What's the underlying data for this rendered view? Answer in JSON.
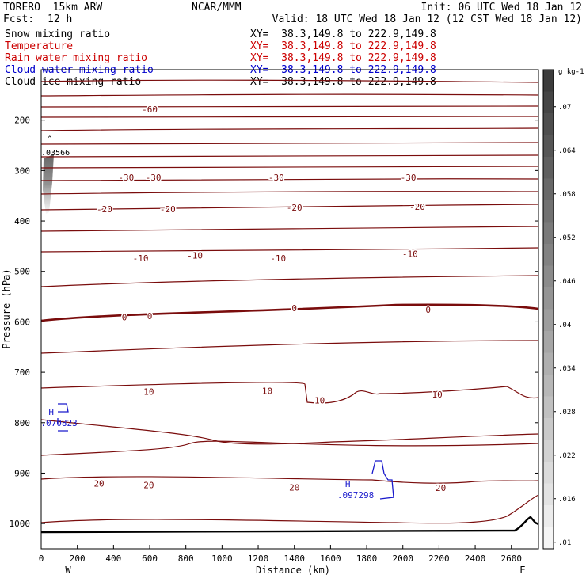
{
  "header": {
    "model": "TORERO  15km ARW",
    "org": "NCAR/MMM",
    "init": "Init: 06 UTC Wed 18 Jan 12",
    "fcst_label": "Fcst:",
    "fcst_value": "12 h",
    "valid": "Valid: 18 UTC Wed 18 Jan 12 (12 CST Wed 18 Jan 12)"
  },
  "legend": [
    {
      "name": "Snow mixing ratio",
      "xy": "XY=  38.3,149.8 to 222.9,149.8",
      "color": "#000000"
    },
    {
      "name": "Temperature",
      "xy": "XY=  38.3,149.8 to 222.9,149.8",
      "color": "#cc0000"
    },
    {
      "name": "Rain water mixing ratio",
      "xy": "XY=  38.3,149.8 to 222.9,149.8",
      "color": "#cc0000"
    },
    {
      "name": "Cloud water mixing ratio",
      "xy": "XY=  38.3,149.8 to 222.9,149.8",
      "color": "#0000cc"
    },
    {
      "name": "Cloud ice mixing ratio",
      "xy": "XY=  38.3,149.8 to 222.9,149.8",
      "color": "#000000"
    }
  ],
  "chart_data": {
    "type": "contour-cross-section",
    "xlabel": "Distance (km)",
    "ylabel": "Pressure (hPa)",
    "xlim": [
      0,
      2750
    ],
    "ylim": [
      1050,
      100
    ],
    "x_ticks": [
      0,
      200,
      400,
      600,
      800,
      1000,
      1200,
      1400,
      1600,
      1800,
      2000,
      2200,
      2400,
      2600
    ],
    "y_ticks": [
      200,
      300,
      400,
      500,
      600,
      700,
      800,
      900,
      1000
    ],
    "endpoints": {
      "left": "W",
      "right": "E"
    },
    "temperature_contour_labels": [
      {
        "value": "-60",
        "x": 600,
        "p": 180
      },
      {
        "value": "-30",
        "x": 470,
        "p": 315
      },
      {
        "value": "-30",
        "x": 620,
        "p": 315
      },
      {
        "value": "-30",
        "x": 1300,
        "p": 315
      },
      {
        "value": "-30",
        "x": 2030,
        "p": 315
      },
      {
        "value": "-20",
        "x": 350,
        "p": 378
      },
      {
        "value": "-20",
        "x": 700,
        "p": 378
      },
      {
        "value": "-20",
        "x": 1400,
        "p": 375
      },
      {
        "value": "-20",
        "x": 2080,
        "p": 373
      },
      {
        "value": "-10",
        "x": 550,
        "p": 475
      },
      {
        "value": "-10",
        "x": 850,
        "p": 470
      },
      {
        "value": "-10",
        "x": 1310,
        "p": 475
      },
      {
        "value": "-10",
        "x": 2040,
        "p": 467
      },
      {
        "value": "0",
        "x": 460,
        "p": 592
      },
      {
        "value": "0",
        "x": 600,
        "p": 590
      },
      {
        "value": "0",
        "x": 1400,
        "p": 574
      },
      {
        "value": "0",
        "x": 2140,
        "p": 577
      },
      {
        "value": "10",
        "x": 595,
        "p": 740
      },
      {
        "value": "10",
        "x": 1250,
        "p": 738
      },
      {
        "value": "10",
        "x": 1540,
        "p": 757
      },
      {
        "value": "10",
        "x": 2190,
        "p": 745
      },
      {
        "value": "20",
        "x": 320,
        "p": 922
      },
      {
        "value": "20",
        "x": 595,
        "p": 925
      },
      {
        "value": "20",
        "x": 1400,
        "p": 930
      },
      {
        "value": "20",
        "x": 2210,
        "p": 931
      }
    ],
    "cloud_water_extrema": [
      {
        "mark": "H",
        "value": ".070823",
        "x": 120,
        "p": 800
      },
      {
        "mark": "H",
        "value": ".097298",
        "x": 1760,
        "p": 943
      }
    ],
    "snow_extremum": {
      "value": ".03566",
      "x": 60,
      "p": 268
    },
    "colorbar": {
      "unit": "g kg-1",
      "labels": [
        ".07",
        ".064",
        ".058",
        ".052",
        ".046",
        ".04",
        ".034",
        ".028",
        ".022",
        ".016",
        ".01"
      ]
    }
  }
}
